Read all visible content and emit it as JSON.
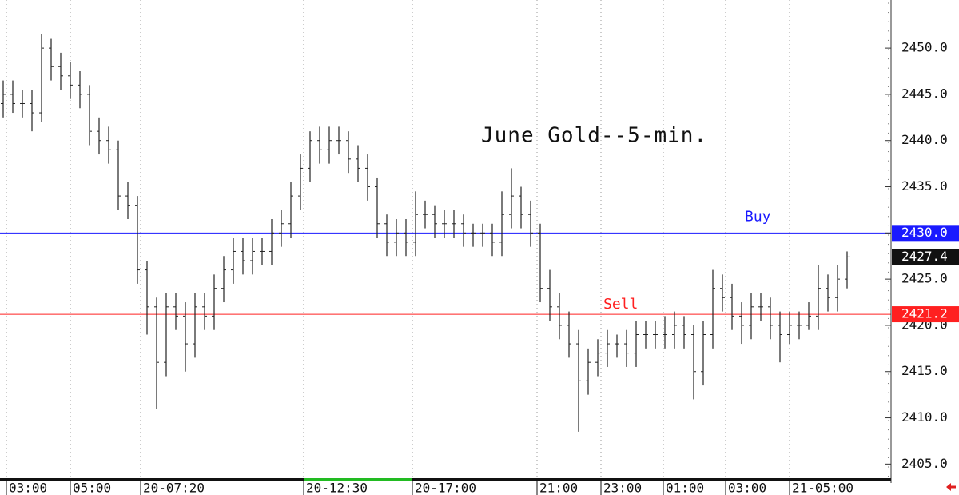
{
  "chart_data": {
    "type": "ohlc",
    "title": "June Gold--5-min.",
    "xlim": [
      0,
      278.75
    ],
    "ylim": [
      2403.3,
      2455.2
    ],
    "grid": true,
    "bar_color": "#222222",
    "xticks": [
      {
        "value": 2,
        "label": "03:00"
      },
      {
        "value": 22,
        "label": "05:00"
      },
      {
        "value": 44,
        "label": "20-07:20"
      },
      {
        "value": 95,
        "label": "20-12:30"
      },
      {
        "value": 129,
        "label": "20-17:00"
      },
      {
        "value": 168,
        "label": "21:00"
      },
      {
        "value": 188,
        "label": "23:00"
      },
      {
        "value": 207.5,
        "label": "01:00"
      },
      {
        "value": 227,
        "label": "03:00"
      },
      {
        "value": 247,
        "label": "21-05:00"
      }
    ],
    "yticks": [
      {
        "value": 2405,
        "label": "2405.0"
      },
      {
        "value": 2410,
        "label": "2410.0"
      },
      {
        "value": 2415,
        "label": "2415.0"
      },
      {
        "value": 2420,
        "label": "2420.0"
      },
      {
        "value": 2425,
        "label": "2425.0"
      },
      {
        "value": 2430,
        "label": "2430.0"
      },
      {
        "value": 2435,
        "label": "2435.0"
      },
      {
        "value": 2440,
        "label": "2440.0"
      },
      {
        "value": 2445,
        "label": "2445.0"
      },
      {
        "value": 2450,
        "label": "2450.0"
      }
    ],
    "levels": [
      {
        "name": "Buy",
        "value": 2430,
        "label": "2430.0",
        "color": "#1a1aff"
      },
      {
        "name": "Sell",
        "value": 2421.2,
        "label": "2421.2",
        "color": "#ff2020"
      }
    ],
    "last_price": {
      "value": 2427.4,
      "label": "2427.4",
      "color": "#111111"
    },
    "x": [
      1,
      4,
      7,
      10,
      13,
      16,
      19,
      22,
      25,
      28,
      31,
      34,
      37,
      40,
      43,
      46,
      49,
      52,
      55,
      58,
      61,
      64,
      67,
      70,
      73,
      76,
      79,
      82,
      85,
      88,
      91,
      94,
      97,
      100,
      103,
      106,
      109,
      112,
      115,
      118,
      121,
      124,
      127,
      130,
      133,
      136,
      139,
      142,
      145,
      148,
      151,
      154,
      157,
      160,
      163,
      166,
      169,
      172,
      175,
      178,
      181,
      184,
      187,
      190,
      193,
      196,
      199,
      202,
      205,
      208,
      211,
      214,
      217,
      220,
      223,
      226,
      229,
      232,
      235,
      238,
      241,
      244,
      247,
      250,
      253,
      256,
      259,
      262,
      265
    ],
    "open": [
      2444,
      2445,
      2444,
      2444,
      2443,
      2450,
      2448,
      2447,
      2446,
      2445,
      2441,
      2440,
      2439,
      2434,
      2433,
      2426,
      2422,
      2416,
      2422,
      2421,
      2418,
      2422,
      2421,
      2424,
      2426,
      2428,
      2427,
      2428,
      2428,
      2430,
      2431,
      2434,
      2437,
      2440,
      2439,
      2440,
      2440,
      2438,
      2437,
      2435,
      2431,
      2429,
      2430,
      2429,
      2432,
      2432,
      2431,
      2431,
      2431,
      2430,
      2430,
      2430,
      2429,
      2432,
      2434,
      2432,
      2430,
      2424,
      2422,
      2420,
      2418,
      2414,
      2416,
      2417,
      2418,
      2418,
      2417,
      2419,
      2419,
      2419,
      2419,
      2420,
      2419,
      2415,
      2419,
      2424,
      2423,
      2421,
      2420,
      2422,
      2422,
      2420,
      2419,
      2420,
      2420,
      2421,
      2424,
      2423,
      2425
    ],
    "high": [
      2446.5,
      2446.5,
      2445.5,
      2445.5,
      2451.5,
      2451,
      2449.5,
      2448.5,
      2447.5,
      2446,
      2442.5,
      2441.5,
      2440,
      2435.5,
      2434,
      2427,
      2423,
      2423.5,
      2423.5,
      2422.5,
      2423.5,
      2423.5,
      2425.5,
      2427.5,
      2429.5,
      2429.5,
      2429.5,
      2429.5,
      2431.5,
      2432.5,
      2435.5,
      2438.5,
      2441,
      2441.5,
      2441.5,
      2441.5,
      2441,
      2439.5,
      2438.5,
      2436,
      2432,
      2431.5,
      2431.5,
      2434.5,
      2433.5,
      2433,
      2432.5,
      2432.5,
      2432,
      2431,
      2431,
      2431,
      2434.5,
      2437,
      2435,
      2433.5,
      2431,
      2426,
      2423.5,
      2421.5,
      2419.5,
      2417.5,
      2418.5,
      2419.5,
      2419,
      2419.5,
      2420.5,
      2420.5,
      2420.5,
      2421,
      2421.5,
      2421,
      2420,
      2420.5,
      2426,
      2425.5,
      2424.5,
      2422.5,
      2423.5,
      2423.5,
      2423,
      2421.5,
      2421.5,
      2421.5,
      2422.5,
      2426.5,
      2425.5,
      2426.5,
      2428
    ],
    "low": [
      2442.5,
      2443,
      2442.5,
      2441,
      2442,
      2446.5,
      2445.5,
      2444.5,
      2443.5,
      2439.5,
      2438.5,
      2437.5,
      2432.5,
      2431.5,
      2424.5,
      2419,
      2411,
      2414.5,
      2419.5,
      2415,
      2416.5,
      2419.5,
      2419.5,
      2422.5,
      2424.5,
      2425.5,
      2425.5,
      2426.5,
      2426.5,
      2428.5,
      2429.5,
      2432.5,
      2435.5,
      2437.5,
      2437.5,
      2438.5,
      2436.5,
      2435.5,
      2433.5,
      2429.5,
      2427.5,
      2427.5,
      2427.5,
      2427.5,
      2430.5,
      2429.5,
      2429.5,
      2429.5,
      2428.5,
      2428.5,
      2428.5,
      2427.5,
      2427.5,
      2430.5,
      2430.5,
      2428.5,
      2422.5,
      2420.5,
      2418.5,
      2416.5,
      2408.5,
      2412.5,
      2414.5,
      2415.5,
      2416.5,
      2415.5,
      2415.5,
      2417.5,
      2417.5,
      2417.5,
      2417.5,
      2417.5,
      2412,
      2413.5,
      2417.5,
      2421.5,
      2419.5,
      2418,
      2418.5,
      2420.5,
      2418.5,
      2416,
      2418,
      2418.5,
      2419.5,
      2419.5,
      2421.5,
      2421.5,
      2424
    ],
    "close": [
      2445,
      2444,
      2444,
      2443,
      2450,
      2448,
      2447,
      2446,
      2445,
      2441,
      2440,
      2439,
      2434,
      2433,
      2426,
      2422,
      2416,
      2422,
      2421,
      2418,
      2422,
      2421,
      2424,
      2426,
      2428,
      2427,
      2428,
      2428,
      2430,
      2431,
      2434,
      2437,
      2440,
      2439,
      2440,
      2440,
      2438,
      2437,
      2435,
      2431,
      2429,
      2430,
      2429,
      2432,
      2432,
      2431,
      2431,
      2431,
      2430,
      2430,
      2430,
      2429,
      2432,
      2434,
      2432,
      2430,
      2424,
      2422,
      2420,
      2418,
      2414,
      2416,
      2417,
      2418,
      2418,
      2417,
      2419,
      2419,
      2419,
      2419,
      2420,
      2419,
      2415,
      2419,
      2424,
      2423,
      2421,
      2420,
      2422,
      2422,
      2420,
      2419,
      2420,
      2420,
      2421,
      2424,
      2423,
      2425,
      2427.4
    ]
  }
}
